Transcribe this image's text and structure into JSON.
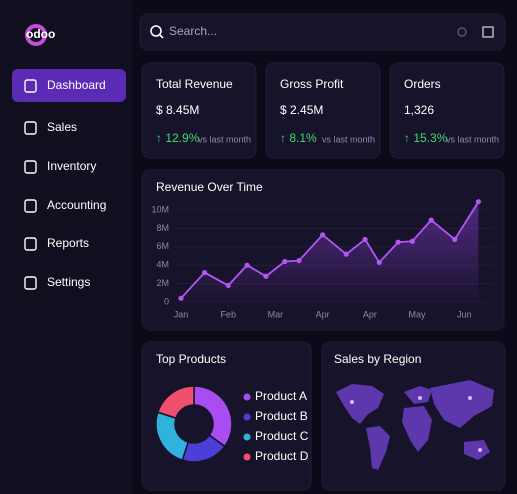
{
  "logo": "odoo",
  "search": {
    "placeholder": "Search..."
  },
  "nav": [
    "Dashboard",
    "Sales",
    "Inventory",
    "Accounting",
    "Reports",
    "Settings"
  ],
  "kpis": [
    {
      "title": "Total Revenue",
      "value": "$ 8.45M",
      "change": "↑ 12.9%",
      "note": "vs last month"
    },
    {
      "title": "Gross Profit",
      "value": "$ 2.45M",
      "change": "↑ 8.1%",
      "note": "vs last month"
    },
    {
      "title": "Orders",
      "value": "1,326",
      "change": "↑ 15.3%",
      "note": "vs last month"
    }
  ],
  "revenue_chart": {
    "type": "line",
    "title": "Revenue Over Time",
    "x": [
      0,
      0.5,
      1.0,
      1.4,
      1.8,
      2.2,
      2.5,
      3.0,
      3.5,
      3.9,
      4.2,
      4.6,
      4.9,
      5.3,
      5.8,
      6.3
    ],
    "series": [
      {
        "color": "#b455f5",
        "values": [
          0.4,
          3.2,
          1.8,
          4.0,
          2.8,
          4.4,
          4.5,
          7.3,
          5.2,
          6.8,
          4.3,
          6.5,
          6.6,
          8.9,
          6.8,
          10.9
        ]
      }
    ],
    "xlim": [
      0,
      6.3
    ],
    "xticks": [
      {
        "value": 0,
        "label": "Jan"
      },
      {
        "value": 1,
        "label": "Feb"
      },
      {
        "value": 2,
        "label": "Mar"
      },
      {
        "value": 3,
        "label": "Apr"
      },
      {
        "value": 4,
        "label": "Apr"
      },
      {
        "value": 5,
        "label": "May"
      },
      {
        "value": 6,
        "label": "Jun"
      }
    ],
    "ylim": [
      0,
      11
    ],
    "yticks": [
      0,
      {
        "value": 2,
        "label": "2M"
      },
      {
        "value": 4,
        "label": "4M"
      },
      {
        "value": 6,
        "label": "6M"
      },
      {
        "value": 8,
        "label": "8M"
      },
      {
        "value": 10,
        "label": "10M"
      }
    ],
    "grid": true
  },
  "top_products": {
    "type": "pie",
    "title": "Top Products",
    "categories": [
      "Product A",
      "Product B",
      "Product C",
      "Product D"
    ],
    "values": [
      35,
      20,
      25,
      20
    ],
    "colors": [
      "#a94cf2",
      "#4b3fd8",
      "#2fb3dc",
      "#f0506e"
    ]
  },
  "sales_by_region": {
    "title": "Sales by Region"
  }
}
